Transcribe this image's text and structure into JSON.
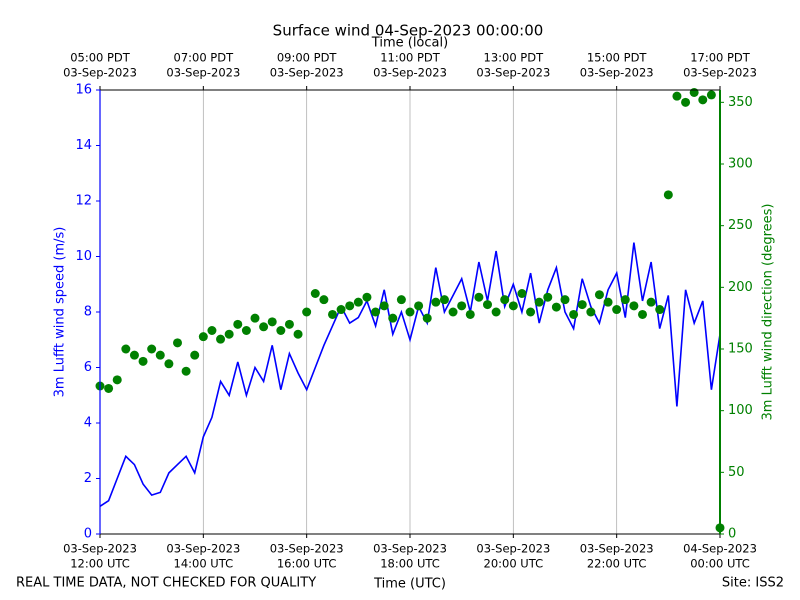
{
  "chart_data": {
    "type": "line",
    "title": "Surface wind 04-Sep-2023 00:00:00",
    "xlabel": "Time (UTC)",
    "x2label": "Time (local)",
    "ylabel": "3m Lufft wind speed (m/s)",
    "y2label": "3m Lufft wind direction (degrees)",
    "footer_left": "REAL TIME DATA, NOT CHECKED FOR QUALITY",
    "footer_right": "Site: ISS2",
    "x": [
      "2023-09-03 12:00",
      "2023-09-03 12:10",
      "2023-09-03 12:20",
      "2023-09-03 12:30",
      "2023-09-03 12:40",
      "2023-09-03 12:50",
      "2023-09-03 13:00",
      "2023-09-03 13:10",
      "2023-09-03 13:20",
      "2023-09-03 13:30",
      "2023-09-03 13:40",
      "2023-09-03 13:50",
      "2023-09-03 14:00",
      "2023-09-03 14:10",
      "2023-09-03 14:20",
      "2023-09-03 14:30",
      "2023-09-03 14:40",
      "2023-09-03 14:50",
      "2023-09-03 15:00",
      "2023-09-03 15:10",
      "2023-09-03 15:20",
      "2023-09-03 15:30",
      "2023-09-03 15:40",
      "2023-09-03 15:50",
      "2023-09-03 16:00",
      "2023-09-03 16:10",
      "2023-09-03 16:20",
      "2023-09-03 16:30",
      "2023-09-03 16:40",
      "2023-09-03 16:50",
      "2023-09-03 17:00",
      "2023-09-03 17:10",
      "2023-09-03 17:20",
      "2023-09-03 17:30",
      "2023-09-03 17:40",
      "2023-09-03 17:50",
      "2023-09-03 18:00",
      "2023-09-03 18:10",
      "2023-09-03 18:20",
      "2023-09-03 18:30",
      "2023-09-03 18:40",
      "2023-09-03 18:50",
      "2023-09-03 19:00",
      "2023-09-03 19:10",
      "2023-09-03 19:20",
      "2023-09-03 19:30",
      "2023-09-03 19:40",
      "2023-09-03 19:50",
      "2023-09-03 20:00",
      "2023-09-03 20:10",
      "2023-09-03 20:20",
      "2023-09-03 20:30",
      "2023-09-03 20:40",
      "2023-09-03 20:50",
      "2023-09-03 21:00",
      "2023-09-03 21:10",
      "2023-09-03 21:20",
      "2023-09-03 21:30",
      "2023-09-03 21:40",
      "2023-09-03 21:50",
      "2023-09-03 22:00",
      "2023-09-03 22:10",
      "2023-09-03 22:20",
      "2023-09-03 22:30",
      "2023-09-03 22:40",
      "2023-09-03 22:50",
      "2023-09-03 23:00",
      "2023-09-03 23:10",
      "2023-09-03 23:20",
      "2023-09-03 23:30",
      "2023-09-03 23:40",
      "2023-09-03 23:50",
      "2023-09-04 00:00"
    ],
    "series": [
      {
        "name": "3m Lufft wind speed",
        "color": "#0000ff",
        "axis": "y",
        "mark": "line",
        "values": [
          1.0,
          1.2,
          2.0,
          2.8,
          2.5,
          1.8,
          1.4,
          1.5,
          2.2,
          2.5,
          2.8,
          2.2,
          3.5,
          4.2,
          5.5,
          5.0,
          6.2,
          5.0,
          6.0,
          5.5,
          6.8,
          5.2,
          6.5,
          5.8,
          5.2,
          6.0,
          6.8,
          7.5,
          8.2,
          7.6,
          7.8,
          8.4,
          7.5,
          8.8,
          7.2,
          8.0,
          7.0,
          8.2,
          7.6,
          9.6,
          8.0,
          8.6,
          9.2,
          8.0,
          9.8,
          8.4,
          10.2,
          8.2,
          9.0,
          8.0,
          9.4,
          7.6,
          8.8,
          9.6,
          8.0,
          7.4,
          9.2,
          8.2,
          7.6,
          8.8,
          9.4,
          7.8,
          10.5,
          8.4,
          9.8,
          7.4,
          8.6,
          4.6,
          8.8,
          7.6,
          8.4,
          5.2,
          7.2
        ]
      },
      {
        "name": "3m Lufft wind direction",
        "color": "#008000",
        "axis": "y2",
        "mark": "scatter",
        "values": [
          120,
          118,
          125,
          150,
          145,
          140,
          150,
          145,
          138,
          155,
          132,
          145,
          160,
          165,
          158,
          162,
          170,
          165,
          175,
          168,
          172,
          165,
          170,
          162,
          180,
          195,
          190,
          178,
          182,
          185,
          188,
          192,
          180,
          185,
          175,
          190,
          180,
          185,
          175,
          188,
          190,
          180,
          185,
          178,
          192,
          186,
          180,
          190,
          185,
          195,
          180,
          188,
          192,
          184,
          190,
          178,
          186,
          180,
          194,
          188,
          182,
          190,
          185,
          178,
          188,
          182,
          275,
          355,
          350,
          358,
          352,
          356,
          5
        ]
      }
    ],
    "xlim": [
      "2023-09-03 12:00",
      "2023-09-04 00:00"
    ],
    "xticks": [
      {
        "value": "2023-09-03 12:00",
        "label": [
          "03-Sep-2023",
          "12:00 UTC"
        ]
      },
      {
        "value": "2023-09-03 14:00",
        "label": [
          "03-Sep-2023",
          "14:00 UTC"
        ]
      },
      {
        "value": "2023-09-03 16:00",
        "label": [
          "03-Sep-2023",
          "16:00 UTC"
        ]
      },
      {
        "value": "2023-09-03 18:00",
        "label": [
          "03-Sep-2023",
          "18:00 UTC"
        ]
      },
      {
        "value": "2023-09-03 20:00",
        "label": [
          "03-Sep-2023",
          "20:00 UTC"
        ]
      },
      {
        "value": "2023-09-03 22:00",
        "label": [
          "03-Sep-2023",
          "22:00 UTC"
        ]
      },
      {
        "value": "2023-09-04 00:00",
        "label": [
          "04-Sep-2023",
          "00:00 UTC"
        ]
      }
    ],
    "x2ticks": [
      {
        "value": "2023-09-03 12:00",
        "label": [
          "05:00 PDT",
          "03-Sep-2023"
        ]
      },
      {
        "value": "2023-09-03 14:00",
        "label": [
          "07:00 PDT",
          "03-Sep-2023"
        ]
      },
      {
        "value": "2023-09-03 16:00",
        "label": [
          "09:00 PDT",
          "03-Sep-2023"
        ]
      },
      {
        "value": "2023-09-03 18:00",
        "label": [
          "11:00 PDT",
          "03-Sep-2023"
        ]
      },
      {
        "value": "2023-09-03 20:00",
        "label": [
          "13:00 PDT",
          "03-Sep-2023"
        ]
      },
      {
        "value": "2023-09-03 22:00",
        "label": [
          "15:00 PDT",
          "03-Sep-2023"
        ]
      },
      {
        "value": "2023-09-04 00:00",
        "label": [
          "17:00 PDT",
          "03-Sep-2023"
        ]
      }
    ],
    "ylim": [
      0,
      16
    ],
    "yticks": [
      0,
      2,
      4,
      6,
      8,
      10,
      12,
      14,
      16
    ],
    "y2lim": [
      0,
      360
    ],
    "y2ticks": [
      0,
      50,
      100,
      150,
      200,
      250,
      300,
      350
    ],
    "grid": "x"
  }
}
